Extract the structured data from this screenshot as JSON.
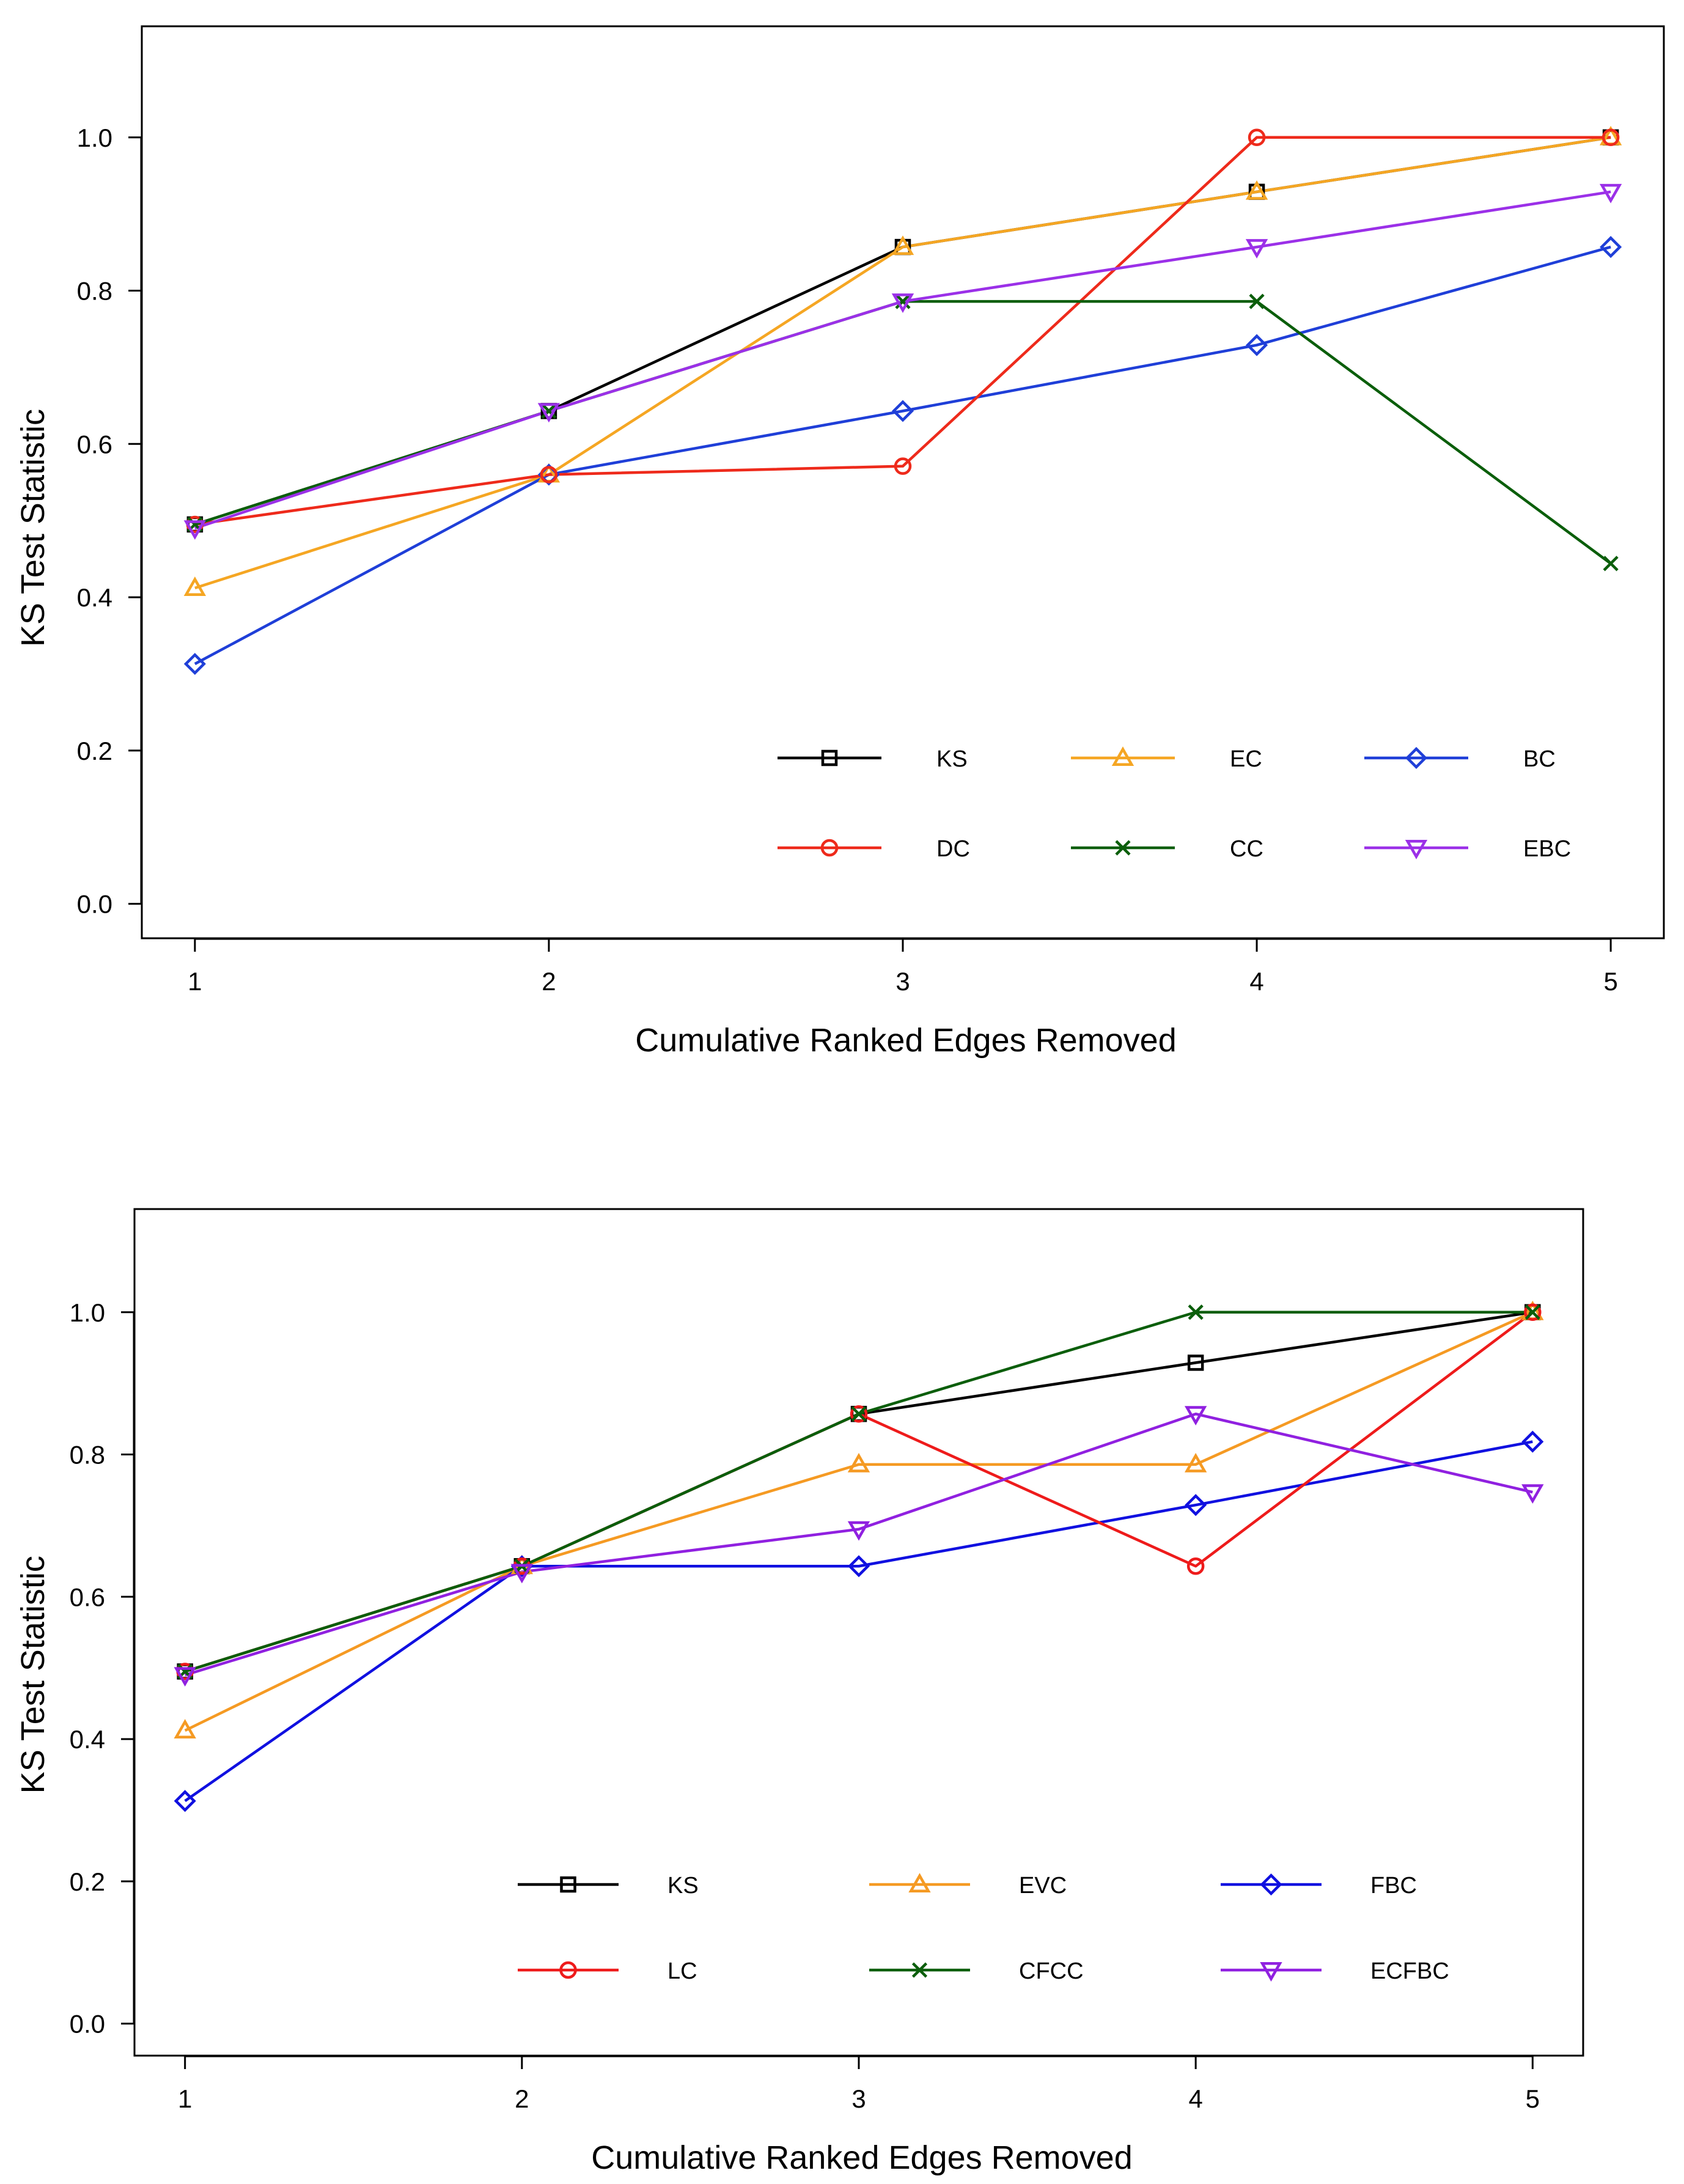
{
  "chart_data": [
    {
      "type": "line",
      "xlabel": "Cumulative Ranked Edges Removed",
      "ylabel": "KS Test Statistic",
      "x": [
        1,
        2,
        3,
        4,
        5
      ],
      "xticks": [
        "1",
        "2",
        "3",
        "4",
        "5"
      ],
      "yticks": [
        "0.0",
        "0.2",
        "0.4",
        "0.6",
        "0.8",
        "1.0"
      ],
      "xlim": [
        0.85,
        5.15
      ],
      "ylim": [
        -0.045,
        1.145
      ],
      "grid": false,
      "legend_position": "bottom-right",
      "series": [
        {
          "name": "KS",
          "color": "#000000",
          "marker": "square",
          "values": [
            0.495,
            0.643,
            0.857,
            0.929,
            1.0
          ]
        },
        {
          "name": "EC",
          "color": "#f5a623",
          "marker": "triangle",
          "values": [
            0.412,
            0.56,
            0.857,
            0.929,
            1.0
          ]
        },
        {
          "name": "BC",
          "color": "#1f3fd8",
          "marker": "diamond",
          "values": [
            0.313,
            0.56,
            0.643,
            0.729,
            0.857
          ]
        },
        {
          "name": "DC",
          "color": "#ee2a1b",
          "marker": "circle",
          "values": [
            0.495,
            0.56,
            0.571,
            1.0,
            1.0
          ]
        },
        {
          "name": "CC",
          "color": "#0b5e0b",
          "marker": "cross",
          "values": [
            0.495,
            0.643,
            0.786,
            0.786,
            0.444
          ]
        },
        {
          "name": "EBC",
          "color": "#9b30e8",
          "marker": "invtriangle",
          "values": [
            0.49,
            0.643,
            0.786,
            0.857,
            0.929
          ]
        }
      ]
    },
    {
      "type": "line",
      "xlabel": "Cumulative Ranked Edges Removed",
      "ylabel": "KS Test Statistic",
      "x": [
        1,
        2,
        3,
        4,
        5
      ],
      "xticks": [
        "1",
        "2",
        "3",
        "4",
        "5"
      ],
      "yticks": [
        "0.0",
        "0.2",
        "0.4",
        "0.6",
        "0.8",
        "1.0"
      ],
      "xlim": [
        0.85,
        5.15
      ],
      "ylim": [
        -0.045,
        1.145
      ],
      "grid": false,
      "legend_position": "bottom-center",
      "series": [
        {
          "name": "KS",
          "color": "#000000",
          "marker": "square",
          "values": [
            0.495,
            0.643,
            0.857,
            0.929,
            1.0
          ]
        },
        {
          "name": "EVC",
          "color": "#f59a23",
          "marker": "triangle",
          "values": [
            0.412,
            0.643,
            0.786,
            0.786,
            1.0
          ]
        },
        {
          "name": "FBC",
          "color": "#1010e0",
          "marker": "diamond",
          "values": [
            0.313,
            0.643,
            0.643,
            0.729,
            0.818
          ]
        },
        {
          "name": "LC",
          "color": "#ee1b1b",
          "marker": "circle",
          "values": [
            0.495,
            0.643,
            0.857,
            0.643,
            1.0
          ]
        },
        {
          "name": "CFCC",
          "color": "#0b5e0b",
          "marker": "cross",
          "values": [
            0.495,
            0.643,
            0.857,
            1.0,
            1.0
          ]
        },
        {
          "name": "ECFBC",
          "color": "#9020e0",
          "marker": "invtriangle",
          "values": [
            0.49,
            0.635,
            0.695,
            0.857,
            0.747
          ]
        }
      ]
    }
  ]
}
